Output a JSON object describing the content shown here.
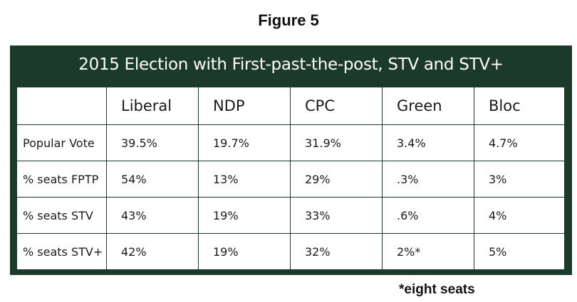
{
  "caption": "Figure 5",
  "title": "2015 Election with First-past-the-post, STV and STV+",
  "table": {
    "columns": [
      "",
      "Liberal",
      "NDP",
      "CPC",
      "Green",
      "Bloc"
    ],
    "rows": [
      {
        "label": "Popular Vote",
        "values": [
          "39.5%",
          "19.7%",
          "31.9%",
          "3.4%",
          "4.7%"
        ]
      },
      {
        "label": "% seats FPTP",
        "values": [
          "54%",
          "13%",
          "29%",
          ".3%",
          "3%"
        ]
      },
      {
        "label": "% seats STV",
        "values": [
          "43%",
          "19%",
          "33%",
          ".6%",
          "4%"
        ]
      },
      {
        "label": "% seats STV+",
        "values": [
          "42%",
          "19%",
          "32%",
          "2%*",
          "5%"
        ]
      }
    ]
  },
  "footnote": "*eight seats",
  "colors": {
    "panel": "#1c3a29",
    "title_text": "#ffffff",
    "cell_background": "#ffffff"
  }
}
